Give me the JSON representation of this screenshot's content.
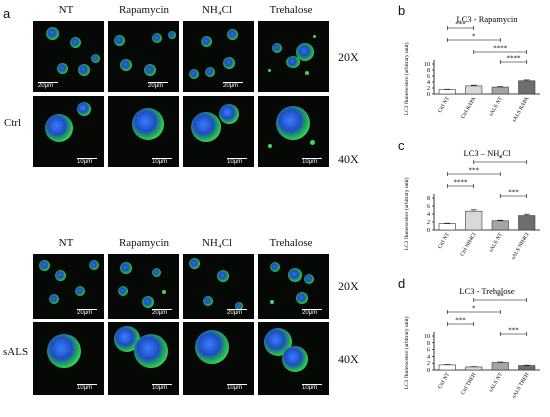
{
  "figure": {
    "panel_a": "a",
    "panel_b": "b",
    "panel_c": "c",
    "panel_d": "d",
    "columns": [
      "NT",
      "Rapamycin",
      "NH₄Cl",
      "Trehalose"
    ],
    "rows": [
      "Ctrl",
      "sALS"
    ],
    "mag_20x": "20X",
    "mag_40x": "40X",
    "scale_20": "20μm",
    "scale_10": "10μm"
  },
  "chart_data": [
    {
      "type": "bar",
      "title": "LC3 - Rapamycin",
      "ylabel": "LC3 fluorescence (arbitrary unit)",
      "categories": [
        "Ctrl NT",
        "Ctrl RAPA",
        "sALS NT",
        "sALS RAPA"
      ],
      "values": [
        1.5,
        2.7,
        2.3,
        4.4
      ],
      "errors": [
        0.1,
        0.25,
        0.15,
        0.3
      ],
      "ylim": [
        0,
        10
      ],
      "yticks": [
        "0",
        "2",
        "4",
        "6",
        "8",
        "10"
      ],
      "bar_colors": [
        "#ffffff",
        "#d9d9d9",
        "#a6a6a6",
        "#6e6e6e"
      ],
      "significance": [
        {
          "from": 0,
          "to": 1,
          "label": "***"
        },
        {
          "from": 0,
          "to": 2,
          "label": "*"
        },
        {
          "from": 1,
          "to": 3,
          "label": "****"
        },
        {
          "from": 2,
          "to": 3,
          "label": "****"
        }
      ]
    },
    {
      "type": "bar",
      "title": "LC3 – NH₄Cl",
      "ylabel": "LC3 fluorescence (arbitrary unit)",
      "categories": [
        "Ctrl NT",
        "Ctrl NH4Cl",
        "sALS NT",
        "sALS NH4Cl"
      ],
      "values": [
        1.6,
        4.7,
        2.3,
        3.6
      ],
      "errors": [
        0.1,
        0.35,
        0.15,
        0.35
      ],
      "ylim": [
        0,
        8
      ],
      "yticks": [
        "0",
        "2",
        "4",
        "6",
        "8"
      ],
      "bar_colors": [
        "#ffffff",
        "#d9d9d9",
        "#a6a6a6",
        "#6e6e6e"
      ],
      "significance": [
        {
          "from": 1,
          "to": 3,
          "label": "*"
        },
        {
          "from": 0,
          "to": 2,
          "label": "***"
        },
        {
          "from": 0,
          "to": 1,
          "label": "****"
        },
        {
          "from": 2,
          "to": 3,
          "label": "***"
        }
      ]
    },
    {
      "type": "bar",
      "title": "LC3 - Trehalose",
      "ylabel": "LC3 fluorescence (arbitrary unit)",
      "categories": [
        "Ctrl NT",
        "Ctrl TREH",
        "sALS NT",
        "sALS TREH"
      ],
      "values": [
        1.5,
        0.9,
        2.2,
        1.3
      ],
      "errors": [
        0.1,
        0.08,
        0.15,
        0.12
      ],
      "ylim": [
        0,
        10
      ],
      "yticks": [
        "0",
        "2",
        "4",
        "6",
        "8",
        "10"
      ],
      "bar_colors": [
        "#ffffff",
        "#d9d9d9",
        "#a6a6a6",
        "#6e6e6e"
      ],
      "significance": [
        {
          "from": 1,
          "to": 3,
          "label": "**"
        },
        {
          "from": 0,
          "to": 2,
          "label": "*"
        },
        {
          "from": 0,
          "to": 1,
          "label": "***"
        },
        {
          "from": 2,
          "to": 3,
          "label": "***"
        }
      ]
    }
  ]
}
